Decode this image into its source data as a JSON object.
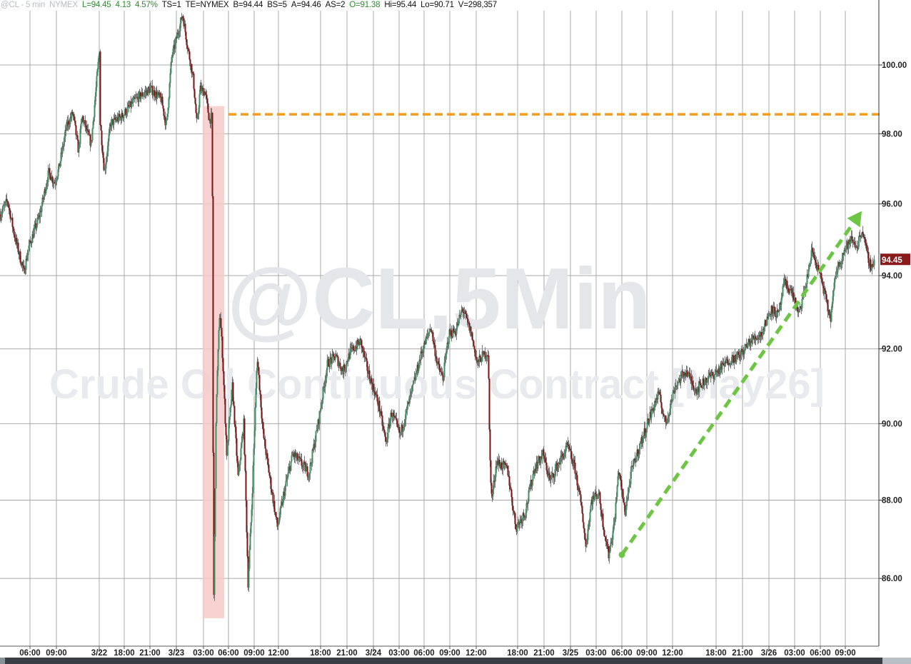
{
  "header": {
    "symbol": "@CL - 5 min",
    "exchange": "NYMEX",
    "last": "L=94.45",
    "change": "4.13",
    "change_pct": "4.57%",
    "ts": "TS=1",
    "te": "TE=NYMEX",
    "bid": "B=94.44",
    "bid_size": "BS=5",
    "ask": "A=94.46",
    "ask_size": "AS=2",
    "open": "O=91.38",
    "high": "Hi=95.44",
    "low": "Lo=90.71",
    "volume": "V=298,357"
  },
  "watermark": {
    "line1": "@CL,5Min",
    "line2": "Crude Oil Continuous Contract [May26]"
  },
  "colors": {
    "up_candle": "#3f8f62",
    "down_candle": "#7d1212",
    "wick": "#7a7a7a",
    "grid": "#a9a9a9",
    "level_line": "#f39c1f",
    "shaded_region": "#f7c9c9",
    "trend_arrow": "#6cc644",
    "last_price_badge": "#8b1a1a"
  },
  "chart_data": {
    "type": "candlestick",
    "interval": "5 min",
    "y_scale": "log",
    "ylim": [
      84.5,
      101.8
    ],
    "grid": true,
    "y_ticks": [
      "86.00",
      "88.00",
      "90.00",
      "92.00",
      "94.00",
      "96.00",
      "98.00",
      "100.00"
    ],
    "x_ticks": [
      "06:00",
      "09:00",
      "3/22",
      "18:00",
      "21:00",
      "3/23",
      "03:00",
      "06:00",
      "09:00",
      "12:00",
      "18:00",
      "21:00",
      "3/24",
      "03:00",
      "06:00",
      "09:00",
      "12:00",
      "18:00",
      "21:00",
      "3/25",
      "03:00",
      "06:00",
      "09:00",
      "12:00",
      "18:00",
      "21:00",
      "3/26",
      "03:00",
      "06:00",
      "09:00"
    ],
    "last_price": "94.45",
    "close_path": [
      [
        "3/20 02:30",
        95.7
      ],
      [
        "3/20 03:20",
        96.1
      ],
      [
        "3/20 04:10",
        95.1
      ],
      [
        "3/20 05:15",
        94.1
      ],
      [
        "3/20 05:50",
        94.8
      ],
      [
        "3/20 07:05",
        95.7
      ],
      [
        "3/20 08:05",
        96.9
      ],
      [
        "3/20 08:45",
        96.6
      ],
      [
        "3/20 09:15",
        97.0
      ],
      [
        "3/20 10:10",
        98.2
      ],
      [
        "3/20 10:55",
        98.6
      ],
      [
        "3/20 11:35",
        97.5
      ],
      [
        "3/20 12:00",
        98.5
      ],
      [
        "3/20 13:05",
        97.7
      ],
      [
        "3/22 15:00",
        100.5
      ],
      [
        "3/22 15:05",
        98.3
      ],
      [
        "3/22 15:35",
        96.9
      ],
      [
        "3/22 16:20",
        98.3
      ],
      [
        "3/22 17:40",
        98.5
      ],
      [
        "3/22 19:20",
        99.0
      ],
      [
        "3/22 21:00",
        99.3
      ],
      [
        "3/22 22:15",
        99.0
      ],
      [
        "3/22 22:50",
        98.2
      ],
      [
        "3/22 23:25",
        100.2
      ],
      [
        "3/23 00:40",
        101.5
      ],
      [
        "3/23 01:10",
        100.6
      ],
      [
        "3/23 01:50",
        99.6
      ],
      [
        "3/23 02:15",
        98.2
      ],
      [
        "3/23 02:35",
        99.3
      ],
      [
        "3/23 03:10",
        99.2
      ],
      [
        "3/23 03:40",
        98.4
      ],
      [
        "3/23 04:00",
        98.5
      ],
      [
        "3/23 04:10",
        85.0
      ],
      [
        "3/23 04:30",
        90.6
      ],
      [
        "3/23 04:55",
        93.1
      ],
      [
        "3/23 05:15",
        91.8
      ],
      [
        "3/23 05:45",
        89.2
      ],
      [
        "3/23 06:25",
        91.0
      ],
      [
        "3/23 07:05",
        88.6
      ],
      [
        "3/23 07:45",
        90.0
      ],
      [
        "3/23 08:15",
        85.9
      ],
      [
        "3/23 08:40",
        87.8
      ],
      [
        "3/23 09:20",
        91.8
      ],
      [
        "3/23 10:05",
        89.7
      ],
      [
        "3/23 11:10",
        88.2
      ],
      [
        "3/23 11:50",
        87.3
      ],
      [
        "3/23 12:50",
        88.4
      ],
      [
        "3/23 13:40",
        89.2
      ],
      [
        "3/23 14:30",
        89.0
      ],
      [
        "3/23 15:35",
        88.7
      ],
      [
        "3/23 16:40",
        90.0
      ],
      [
        "3/23 18:45",
        91.6
      ],
      [
        "3/23 19:40",
        91.8
      ],
      [
        "3/23 20:30",
        91.4
      ],
      [
        "3/23 21:20",
        91.9
      ],
      [
        "3/23 22:30",
        92.2
      ],
      [
        "3/23 23:20",
        91.4
      ],
      [
        "3/24 00:35",
        90.5
      ],
      [
        "3/24 01:25",
        89.5
      ],
      [
        "3/24 02:05",
        90.3
      ],
      [
        "3/24 03:05",
        89.7
      ],
      [
        "3/24 04:25",
        90.8
      ],
      [
        "3/24 05:40",
        91.9
      ],
      [
        "3/24 06:45",
        92.6
      ],
      [
        "3/24 07:30",
        91.6
      ],
      [
        "3/24 08:10",
        91.2
      ],
      [
        "3/24 08:50",
        92.4
      ],
      [
        "3/24 09:40",
        92.5
      ],
      [
        "3/24 10:25",
        93.1
      ],
      [
        "3/24 11:25",
        92.4
      ],
      [
        "3/24 12:05",
        91.6
      ],
      [
        "3/24 12:40",
        91.8
      ],
      [
        "3/24 13:25",
        91.9
      ],
      [
        "3/24 13:35",
        89.3
      ],
      [
        "3/24 13:50",
        88.0
      ],
      [
        "3/24 14:25",
        89.0
      ],
      [
        "3/24 15:45",
        88.8
      ],
      [
        "3/24 16:45",
        87.3
      ],
      [
        "3/24 18:50",
        87.7
      ],
      [
        "3/24 19:50",
        88.8
      ],
      [
        "3/24 20:50",
        89.2
      ],
      [
        "3/24 21:40",
        88.5
      ],
      [
        "3/24 22:30",
        88.9
      ],
      [
        "3/24 23:40",
        89.4
      ],
      [
        "3/25 00:30",
        88.8
      ],
      [
        "3/25 01:20",
        87.7
      ],
      [
        "3/25 01:45",
        86.8
      ],
      [
        "3/25 02:25",
        88.0
      ],
      [
        "3/25 03:15",
        88.2
      ],
      [
        "3/25 03:50",
        87.3
      ],
      [
        "3/25 04:25",
        86.6
      ],
      [
        "3/25 05:05",
        87.4
      ],
      [
        "3/25 05:35",
        88.8
      ],
      [
        "3/25 06:20",
        87.7
      ],
      [
        "3/25 07:10",
        88.8
      ],
      [
        "3/25 08:15",
        89.5
      ],
      [
        "3/25 09:20",
        90.2
      ],
      [
        "3/25 10:20",
        90.8
      ],
      [
        "3/25 11:10",
        90.0
      ],
      [
        "3/25 12:15",
        91.0
      ],
      [
        "3/25 13:30",
        91.4
      ],
      [
        "3/25 14:40",
        90.9
      ],
      [
        "3/25 15:55",
        91.2
      ],
      [
        "3/25 18:10",
        91.4
      ],
      [
        "3/25 19:25",
        91.7
      ],
      [
        "3/25 20:35",
        91.8
      ],
      [
        "3/25 21:50",
        92.2
      ],
      [
        "3/25 23:05",
        92.4
      ],
      [
        "3/26 00:15",
        93.1
      ],
      [
        "3/26 01:05",
        92.9
      ],
      [
        "3/26 01:45",
        93.8
      ],
      [
        "3/26 02:45",
        93.5
      ],
      [
        "3/26 03:25",
        92.9
      ],
      [
        "3/26 04:15",
        93.7
      ],
      [
        "3/26 05:00",
        94.7
      ],
      [
        "3/26 06:05",
        93.9
      ],
      [
        "3/26 07:10",
        92.8
      ],
      [
        "3/26 07:50",
        94.1
      ],
      [
        "3/26 08:50",
        94.7
      ],
      [
        "3/26 09:40",
        95.0
      ],
      [
        "3/26 10:20",
        94.8
      ],
      [
        "3/26 10:55",
        95.3
      ],
      [
        "3/26 11:30",
        94.6
      ],
      [
        "3/26 12:00",
        94.2
      ],
      [
        "3/26 12:20",
        94.45
      ]
    ],
    "annotations": {
      "level_line": {
        "price": 98.56,
        "from": "3/23 06:00",
        "style": "dashed"
      },
      "shaded_region": {
        "from": "3/23 02:55",
        "to": "3/23 05:30",
        "price_range": [
          85.0,
          98.8
        ]
      },
      "trend_arrow": {
        "from": [
          "3/25 06:00",
          86.6
        ],
        "to": [
          "3/26 10:55",
          95.8
        ],
        "style": "dashed"
      }
    }
  }
}
